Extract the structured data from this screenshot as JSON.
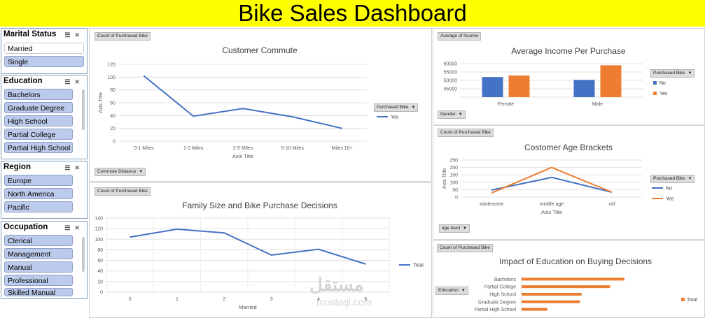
{
  "title": "Bike Sales Dashboard",
  "watermark": {
    "main": "مستقل",
    "sub": "mostaql.com"
  },
  "slicers": {
    "marital": {
      "title": "Marital Status",
      "items": [
        "Married",
        "Single"
      ]
    },
    "education": {
      "title": "Education",
      "items": [
        "Bachelors",
        "Graduate Degree",
        "High School",
        "Partial College",
        "Partial High School"
      ]
    },
    "region": {
      "title": "Region",
      "items": [
        "Europe",
        "North America",
        "Pacific"
      ]
    },
    "occupation": {
      "title": "Occupation",
      "items": [
        "Clerical",
        "Management",
        "Manual",
        "Professional",
        "Skilled Manual"
      ]
    }
  },
  "colors": {
    "blue": "#4472c4",
    "orange": "#ed7d31",
    "banner": "#ffff00",
    "chip": "#bccbeb"
  },
  "charts": {
    "commute": {
      "field": "Count of Purchased Bike",
      "filter": "Commute Distance",
      "legend_field": "Purchased Bike"
    },
    "family": {
      "field": "Count of Purchased Bike"
    },
    "income": {
      "field": "Average of Income",
      "filter": "Gender",
      "legend_field": "Purchased Bike"
    },
    "age": {
      "field": "Count of Purchased Bike",
      "filter": "age level",
      "legend_field": "Purchased Bike"
    },
    "education": {
      "field": "Count of Purchased Bike",
      "filter": "Education"
    }
  },
  "chart_data": [
    {
      "id": "commute",
      "type": "line",
      "title": "Customer Commute",
      "xlabel": "Axis Title",
      "ylabel": "Axis Title",
      "categories": [
        "0-1 Miles",
        "1-2 Miles",
        "2-5 Miles",
        "5-10 Miles",
        "Miles 10+"
      ],
      "series": [
        {
          "name": "Yes",
          "values": [
            102,
            39,
            51,
            38,
            20
          ]
        }
      ],
      "ylim": [
        0,
        120
      ],
      "yticks": [
        0,
        20,
        40,
        60,
        80,
        100,
        120
      ],
      "legend": "right",
      "grid": true
    },
    {
      "id": "family",
      "type": "line",
      "title": "Family Size and Bike Purchase Decisions",
      "xlabel": "Married",
      "ylabel": "",
      "categories": [
        "0",
        "1",
        "2",
        "3",
        "4",
        "5"
      ],
      "series": [
        {
          "name": "Total",
          "values": [
            104,
            119,
            112,
            70,
            81,
            53
          ]
        }
      ],
      "ylim": [
        0,
        140
      ],
      "yticks": [
        0,
        20,
        40,
        60,
        80,
        100,
        120,
        140
      ],
      "legend": "right",
      "grid": true
    },
    {
      "id": "income",
      "type": "bar",
      "title": "Average Income Per Purchase",
      "xlabel": "",
      "ylabel": "",
      "categories": [
        "Female",
        "Male"
      ],
      "series": [
        {
          "name": "No",
          "values": [
            52000,
            50300
          ]
        },
        {
          "name": "Yes",
          "values": [
            52900,
            59000
          ]
        }
      ],
      "ylim": [
        40000,
        60000
      ],
      "yticks": [
        40000,
        45000,
        50000,
        55000,
        60000
      ],
      "legend": "right",
      "grid": true
    },
    {
      "id": "age",
      "type": "line",
      "title": "Costomer Age Brackets",
      "xlabel": "Axis Title",
      "ylabel": "Axis Title",
      "categories": [
        "adolescent",
        "middle age",
        "old"
      ],
      "series": [
        {
          "name": "No",
          "values": [
            47,
            133,
            33
          ]
        },
        {
          "name": "Yes",
          "values": [
            28,
            200,
            33
          ]
        }
      ],
      "ylim": [
        0,
        250
      ],
      "yticks": [
        0,
        50,
        100,
        150,
        200,
        250
      ],
      "legend": "right",
      "grid": true
    },
    {
      "id": "education",
      "type": "bar",
      "title": "Impact of Education on Buying Decisions",
      "xlabel": "",
      "ylabel": "",
      "categories": [
        "Bachelors",
        "Partial College",
        "High School",
        "Graduate Degree",
        "Partial High School"
      ],
      "series": [
        {
          "name": "Total",
          "values": [
            180,
            155,
            105,
            102,
            45
          ]
        }
      ],
      "xlim": [
        0,
        250
      ],
      "legend": "right",
      "grid": false
    }
  ]
}
